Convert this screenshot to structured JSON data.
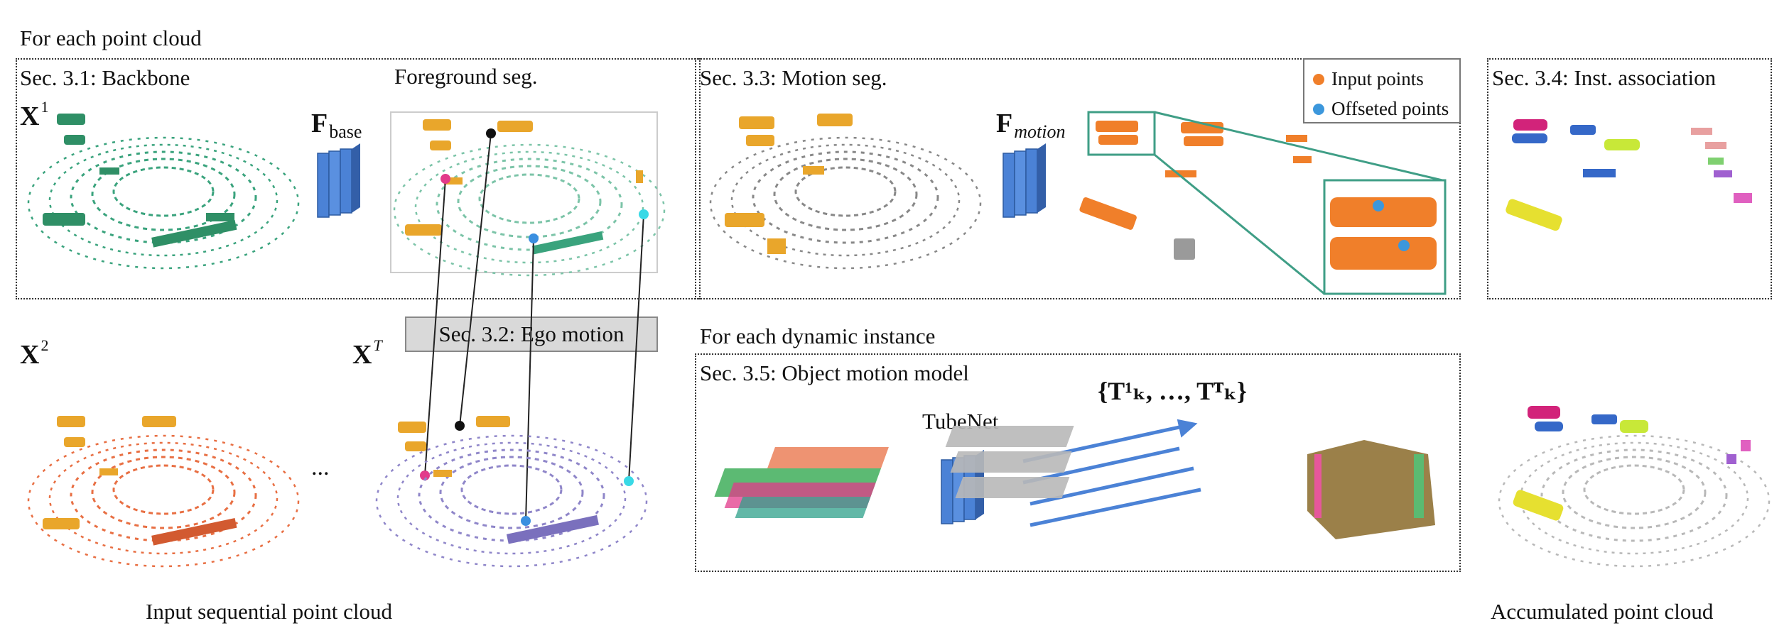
{
  "figure": {
    "heading_point_cloud": "For each point cloud",
    "heading_dynamic": "For each dynamic instance",
    "caption_input": "Input sequential point cloud",
    "caption_accumulated": "Accumulated point cloud",
    "ellipsis": "..."
  },
  "sections": {
    "backbone": "Sec. 3.1: Backbone",
    "foreground": "Foreground seg.",
    "ego_motion": "Sec. 3.2: Ego motion",
    "motion_seg": "Sec. 3.3: Motion seg.",
    "inst_assoc": "Sec. 3.4: Inst. association",
    "object_motion": "Sec. 3.5: Object motion model"
  },
  "math": {
    "x1_base": "X",
    "x1_sup": "1",
    "x2_base": "X",
    "x2_sup": "2",
    "xt_base": "X",
    "xt_sup": "T",
    "fbase_base": "F",
    "fbase_sub": "base",
    "fmotion_base": "F",
    "fmotion_sub": "motion",
    "transforms": "{T",
    "transforms_full": "{T¹ₖ, …, Tᵀₖ}"
  },
  "tubenet": {
    "label": "TubeNet"
  },
  "legend": {
    "items": [
      {
        "label": "Input points",
        "color": "#f07f2a"
      },
      {
        "label": "Offseted points",
        "color": "#3c97dc"
      }
    ]
  },
  "colors": {
    "scan_green": "#3aa37d",
    "scan_orange": "#e86f43",
    "scan_purple": "#8f86c9",
    "foreground_yellow": "#e9a62b",
    "network_blue": "#4b82d6",
    "zoom_teal": "#3f9e86",
    "marker_pink": "#e23a8a",
    "marker_black": "#111111",
    "marker_blue": "#3a8fe0",
    "marker_cyan": "#39d9e6"
  },
  "icons": [
    "network-block-icon",
    "point-cloud-icon",
    "correspondence-line-icon"
  ]
}
